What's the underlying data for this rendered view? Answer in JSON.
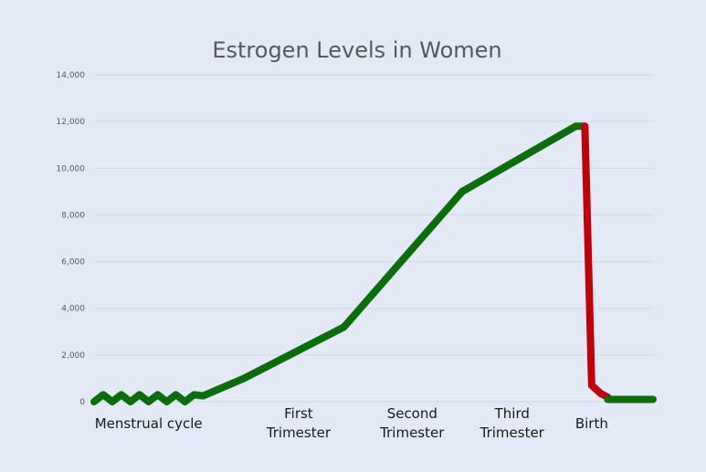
{
  "chart_data": {
    "type": "line",
    "title": "Estrogen Levels in Women",
    "xlabel": "",
    "ylabel": "",
    "ylim": [
      0,
      14000
    ],
    "yticks": [
      0,
      2000,
      4000,
      6000,
      8000,
      10000,
      12000,
      14000
    ],
    "ytick_labels": [
      "0",
      "2,000",
      "4,000",
      "6,000",
      "8,000",
      "10,000",
      "12,000",
      "14,000"
    ],
    "grid": true,
    "legend": "none",
    "phase_labels": [
      {
        "lines": [
          "Menstrual cycle"
        ],
        "x": 0.12,
        "color": "#1a1a1a"
      },
      {
        "lines": [
          "First",
          "Trimester"
        ],
        "x": 0.45,
        "color": "#1a1a1a"
      },
      {
        "lines": [
          "Second",
          "Trimester"
        ],
        "x": 0.7,
        "color": "#1a1a1a"
      },
      {
        "lines": [
          "Third",
          "Trimester"
        ],
        "x": 0.92,
        "color": "#1a1a1a"
      },
      {
        "lines": [
          "Birth"
        ],
        "x": 1.095,
        "color": "#c0000b"
      }
    ],
    "series": [
      {
        "color": "#0b6e0b",
        "points": [
          [
            0,
            0
          ],
          [
            0.02,
            300
          ],
          [
            0.04,
            0
          ],
          [
            0.06,
            300
          ],
          [
            0.08,
            0
          ],
          [
            0.1,
            300
          ],
          [
            0.12,
            0
          ],
          [
            0.14,
            300
          ],
          [
            0.16,
            0
          ],
          [
            0.18,
            300
          ],
          [
            0.2,
            0
          ],
          [
            0.22,
            300
          ],
          [
            0.24,
            250
          ],
          [
            0.33,
            1000
          ],
          [
            0.55,
            3200
          ],
          [
            0.81,
            9000
          ],
          [
            1.06,
            11800
          ],
          [
            1.08,
            11800
          ]
        ]
      },
      {
        "color": "#c0000b",
        "points": [
          [
            1.08,
            11800
          ],
          [
            1.095,
            700
          ],
          [
            1.115,
            350
          ],
          [
            1.13,
            200
          ]
        ]
      },
      {
        "color": "#0b6e0b",
        "points": [
          [
            1.13,
            100
          ],
          [
            1.23,
            100
          ]
        ]
      }
    ]
  }
}
